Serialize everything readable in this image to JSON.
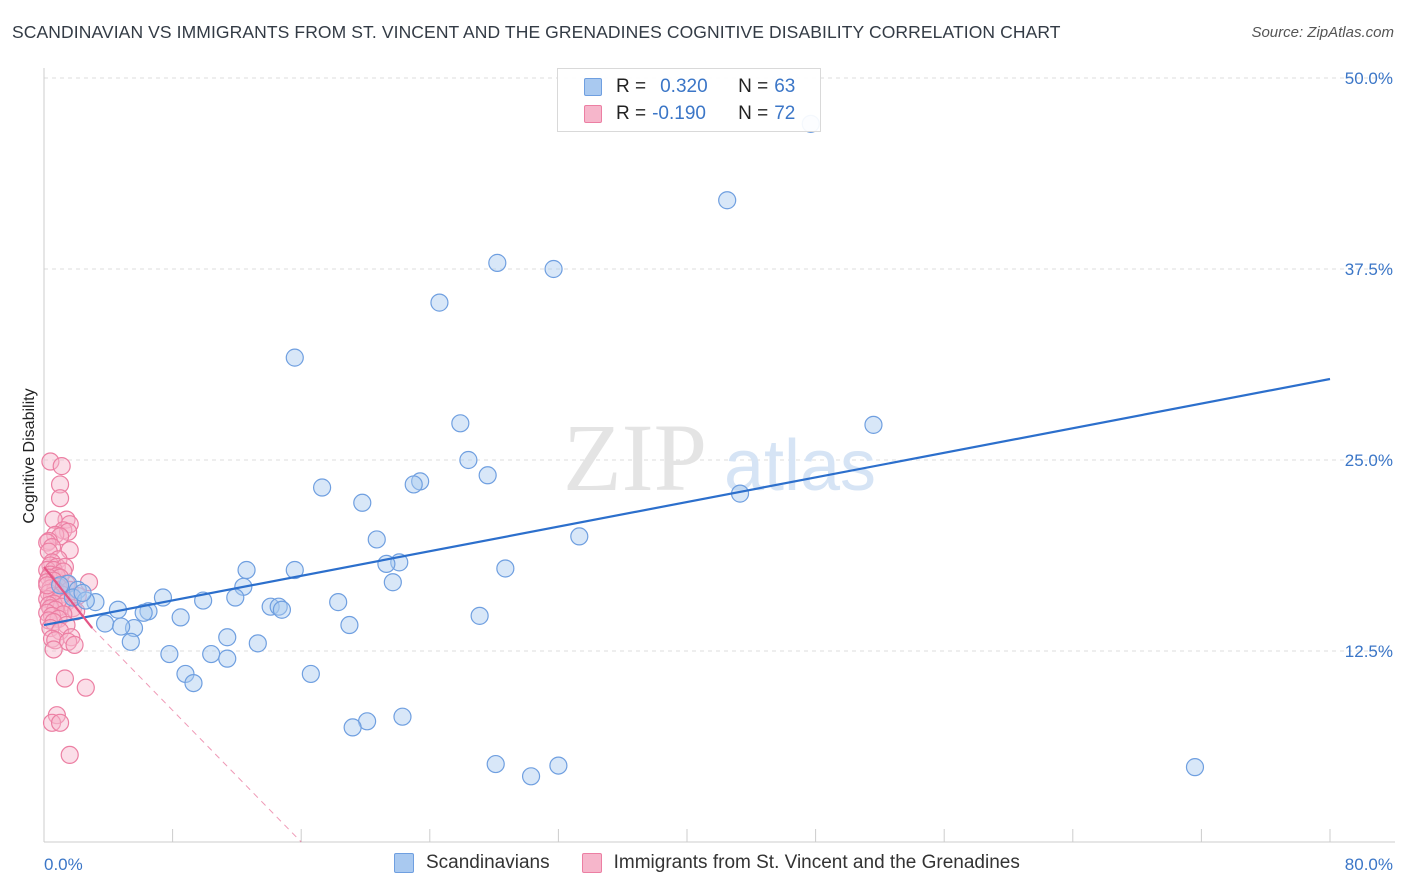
{
  "header": {
    "title": "SCANDINAVIAN VS IMMIGRANTS FROM ST. VINCENT AND THE GRENADINES COGNITIVE DISABILITY CORRELATION CHART",
    "source": "Source: ZipAtlas.com"
  },
  "legend": {
    "r_label": "R =",
    "n_label": "N =",
    "series1": {
      "r": "0.320",
      "n": "63"
    },
    "series2": {
      "r": "-0.190",
      "n": "72"
    }
  },
  "watermark": {
    "zip": "ZIP",
    "atlas": "atlas"
  },
  "colors": {
    "blue_fill": "#a9c9f0",
    "blue_stroke": "#6f9fe0",
    "blue_line": "#2c6fcc",
    "pink_fill": "#f6b6cb",
    "pink_stroke": "#ec7fa3",
    "pink_line": "#e45585",
    "tick_text": "#3b76c7",
    "grid": "#dddddd"
  },
  "chart_data": {
    "type": "scatter",
    "title": "SCANDINAVIAN VS IMMIGRANTS FROM ST. VINCENT AND THE GRENADINES COGNITIVE DISABILITY CORRELATION CHART",
    "xlabel": "",
    "ylabel": "Cognitive Disability",
    "xlim": [
      0,
      80
    ],
    "ylim": [
      0,
      50
    ],
    "x_tick_labels": [
      "0.0%",
      "80.0%"
    ],
    "y_ticks": [
      12.5,
      25.0,
      37.5,
      50.0
    ],
    "y_tick_labels": [
      "12.5%",
      "25.0%",
      "37.5%",
      "50.0%"
    ],
    "legend_position": "top-center",
    "series": [
      {
        "name": "Scandinavians",
        "r": 0.32,
        "n": 63,
        "trend": {
          "x0": 0.0,
          "y0": 14.2,
          "x1": 80.0,
          "y1": 30.3
        },
        "points": [
          [
            47.7,
            47.0
          ],
          [
            42.5,
            42.0
          ],
          [
            28.2,
            37.9
          ],
          [
            31.7,
            37.5
          ],
          [
            24.6,
            35.3
          ],
          [
            15.6,
            31.7
          ],
          [
            51.6,
            27.3
          ],
          [
            25.9,
            27.4
          ],
          [
            26.4,
            25.0
          ],
          [
            27.6,
            24.0
          ],
          [
            23.4,
            23.6
          ],
          [
            23.0,
            23.4
          ],
          [
            43.3,
            22.8
          ],
          [
            17.3,
            23.2
          ],
          [
            19.8,
            22.2
          ],
          [
            33.3,
            20.0
          ],
          [
            20.7,
            19.8
          ],
          [
            22.1,
            18.3
          ],
          [
            21.3,
            18.2
          ],
          [
            28.7,
            17.9
          ],
          [
            12.6,
            17.8
          ],
          [
            15.6,
            17.8
          ],
          [
            12.4,
            16.7
          ],
          [
            21.7,
            17.0
          ],
          [
            11.9,
            16.0
          ],
          [
            7.4,
            16.0
          ],
          [
            9.9,
            15.8
          ],
          [
            18.3,
            15.7
          ],
          [
            14.1,
            15.4
          ],
          [
            14.6,
            15.4
          ],
          [
            14.8,
            15.2
          ],
          [
            6.5,
            15.1
          ],
          [
            6.2,
            15.0
          ],
          [
            27.1,
            14.8
          ],
          [
            8.5,
            14.7
          ],
          [
            4.6,
            15.2
          ],
          [
            1.5,
            16.9
          ],
          [
            2.1,
            16.5
          ],
          [
            1.8,
            16.0
          ],
          [
            3.2,
            15.7
          ],
          [
            2.6,
            15.8
          ],
          [
            19.0,
            14.2
          ],
          [
            5.6,
            14.0
          ],
          [
            3.8,
            14.3
          ],
          [
            4.8,
            14.1
          ],
          [
            11.4,
            13.4
          ],
          [
            13.3,
            13.0
          ],
          [
            5.4,
            13.1
          ],
          [
            7.8,
            12.3
          ],
          [
            10.4,
            12.3
          ],
          [
            11.4,
            12.0
          ],
          [
            8.8,
            11.0
          ],
          [
            9.3,
            10.4
          ],
          [
            16.6,
            11.0
          ],
          [
            22.3,
            8.2
          ],
          [
            20.1,
            7.9
          ],
          [
            19.2,
            7.5
          ],
          [
            28.1,
            5.1
          ],
          [
            32.0,
            5.0
          ],
          [
            30.3,
            4.3
          ],
          [
            71.6,
            4.9
          ],
          [
            1.0,
            16.8
          ],
          [
            2.4,
            16.3
          ]
        ]
      },
      {
        "name": "Immigrants from St. Vincent and the Grenadines",
        "r": -0.19,
        "n": 72,
        "trend": {
          "x0": 0.0,
          "y0": 18.0,
          "x1": 3.0,
          "y1": 14.0
        },
        "trend_extension": {
          "x0": 3.0,
          "y0": 14.0,
          "x1": 16.0,
          "y1": 0.0
        },
        "points": [
          [
            0.4,
            24.9
          ],
          [
            1.1,
            24.6
          ],
          [
            1.0,
            23.4
          ],
          [
            1.0,
            22.5
          ],
          [
            1.4,
            21.1
          ],
          [
            0.6,
            21.1
          ],
          [
            1.6,
            20.8
          ],
          [
            1.2,
            20.4
          ],
          [
            1.5,
            20.3
          ],
          [
            0.7,
            20.1
          ],
          [
            1.0,
            20.0
          ],
          [
            0.3,
            19.7
          ],
          [
            0.2,
            19.6
          ],
          [
            0.5,
            19.3
          ],
          [
            1.6,
            19.1
          ],
          [
            0.3,
            19.0
          ],
          [
            0.9,
            18.5
          ],
          [
            0.5,
            18.3
          ],
          [
            0.4,
            18.1
          ],
          [
            0.8,
            18.0
          ],
          [
            1.3,
            18.0
          ],
          [
            0.2,
            17.8
          ],
          [
            0.6,
            17.8
          ],
          [
            1.2,
            17.7
          ],
          [
            0.4,
            17.5
          ],
          [
            0.8,
            17.4
          ],
          [
            0.3,
            17.3
          ],
          [
            1.0,
            17.3
          ],
          [
            0.6,
            17.1
          ],
          [
            2.8,
            17.0
          ],
          [
            0.2,
            17.0
          ],
          [
            1.4,
            16.9
          ],
          [
            0.9,
            16.7
          ],
          [
            0.4,
            16.6
          ],
          [
            0.7,
            16.5
          ],
          [
            1.6,
            16.5
          ],
          [
            0.3,
            16.3
          ],
          [
            1.1,
            16.2
          ],
          [
            0.5,
            16.1
          ],
          [
            2.1,
            16.1
          ],
          [
            0.2,
            15.9
          ],
          [
            0.9,
            15.8
          ],
          [
            1.4,
            15.7
          ],
          [
            0.6,
            15.6
          ],
          [
            0.3,
            15.5
          ],
          [
            1.1,
            15.4
          ],
          [
            0.4,
            15.3
          ],
          [
            1.8,
            15.3
          ],
          [
            0.7,
            15.2
          ],
          [
            2.0,
            15.1
          ],
          [
            0.2,
            15.0
          ],
          [
            1.2,
            14.9
          ],
          [
            0.5,
            14.8
          ],
          [
            0.9,
            14.6
          ],
          [
            0.3,
            14.5
          ],
          [
            0.6,
            14.4
          ],
          [
            1.4,
            14.2
          ],
          [
            0.4,
            14.0
          ],
          [
            1.0,
            13.8
          ],
          [
            1.7,
            13.4
          ],
          [
            0.5,
            13.3
          ],
          [
            0.7,
            13.2
          ],
          [
            1.5,
            13.1
          ],
          [
            1.9,
            12.9
          ],
          [
            0.6,
            12.6
          ],
          [
            1.3,
            10.7
          ],
          [
            2.6,
            10.1
          ],
          [
            0.8,
            8.3
          ],
          [
            0.5,
            7.8
          ],
          [
            1.0,
            7.8
          ],
          [
            1.6,
            5.7
          ],
          [
            0.2,
            16.8
          ]
        ]
      }
    ]
  }
}
